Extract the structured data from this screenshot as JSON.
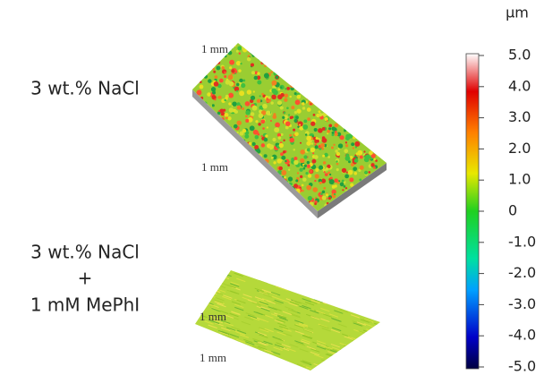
{
  "panels": [
    {
      "label": [
        "3 wt.% NaCl"
      ],
      "dims": [
        "1 mm",
        "1 mm"
      ]
    },
    {
      "label": [
        "3 wt.% NaCl",
        "+",
        "1 mM MePhI"
      ],
      "dims": [
        "1 mm",
        "1 mm"
      ]
    }
  ],
  "colorbar": {
    "unit": "μm",
    "ticks": [
      {
        "value": 5,
        "label": "5.0"
      },
      {
        "value": 4,
        "label": "4.0"
      },
      {
        "value": 3,
        "label": "3.0"
      },
      {
        "value": 2,
        "label": "2.0"
      },
      {
        "value": 1,
        "label": "1.0"
      },
      0,
      {
        "value": -1,
        "label": "-1.0"
      },
      {
        "value": -2,
        "label": "-2.0"
      },
      {
        "value": -3,
        "label": "-3.0"
      },
      {
        "value": -4,
        "label": "-4.0"
      },
      {
        "value": -5,
        "label": "-5.0"
      }
    ]
  }
}
